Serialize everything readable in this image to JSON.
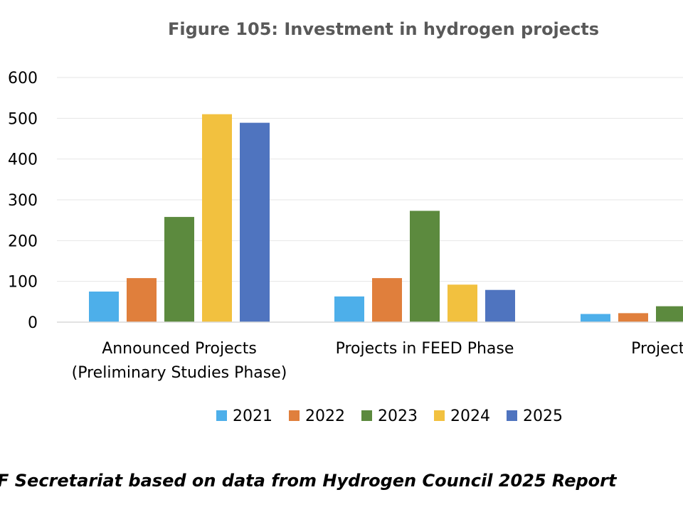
{
  "chart_data": {
    "type": "bar",
    "title": "Figure 105: Investment in hydrogen projects",
    "categories": [
      [
        "Announced Projects",
        "(Preliminary Studies Phase)"
      ],
      [
        "Projects in FEED Phase"
      ],
      [
        "Projects w"
      ]
    ],
    "series": [
      {
        "name": "2021",
        "values": [
          75,
          63,
          20
        ]
      },
      {
        "name": "2022",
        "values": [
          108,
          108,
          22
        ]
      },
      {
        "name": "2023",
        "values": [
          258,
          273,
          39
        ]
      },
      {
        "name": "2024",
        "values": [
          510,
          92,
          null
        ]
      },
      {
        "name": "2025",
        "values": [
          489,
          79,
          null
        ]
      }
    ],
    "ylim": [
      0,
      600
    ],
    "yticks": [
      0,
      100,
      200,
      300,
      400,
      500,
      600
    ],
    "grid": true,
    "legend_position": "bottom",
    "colors": [
      "#4DAFEA",
      "#E07F3C",
      "#5C8A3E",
      "#F2C13F",
      "#4F74BF"
    ],
    "source": "F Secretariat based on data from Hydrogen Council 2025 Report"
  }
}
